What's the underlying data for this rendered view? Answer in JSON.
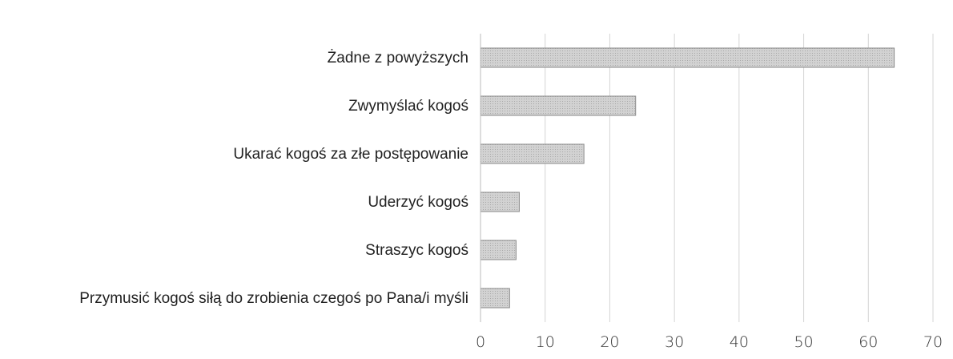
{
  "chart_data": {
    "type": "bar",
    "orientation": "horizontal",
    "categories": [
      "Żadne z powyższych",
      "Zwymyślać kogoś",
      "Ukarać kogoś za złe postępowanie",
      "Uderzyć kogoś",
      "Straszyc kogoś",
      "Przymusić kogoś siłą do zrobienia czegoś po Pana/i myśli"
    ],
    "values": [
      64,
      24,
      16,
      6,
      5.5,
      4.5
    ],
    "color": "#c9c9c9",
    "xlim": [
      0,
      70
    ],
    "xticks": [
      0,
      10,
      20,
      30,
      40,
      50,
      60,
      70
    ],
    "grid": true
  }
}
